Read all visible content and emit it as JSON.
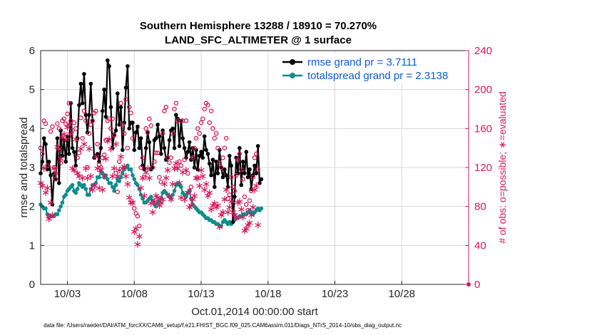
{
  "chart_data": {
    "type": "line",
    "title_line1": "Southern Hemisphere 13288 / 18910 = 70.270%",
    "title_line2": "LAND_SFC_ALTIMETER @ 1 surface",
    "xlabel": "Oct.01,2014 00:00:00 start",
    "ylabel_left": "rmse and totalspread",
    "ylabel_right": "# of obs: o=possible; ∗=evaluated",
    "x_tick_labels": [
      "10/03",
      "10/08",
      "10/13",
      "10/18",
      "10/23",
      "10/28"
    ],
    "x_tick_days": [
      3,
      8,
      13,
      18,
      23,
      28
    ],
    "xlim": [
      1,
      33
    ],
    "y_left_ticks": [
      "0",
      "1",
      "2",
      "3",
      "4",
      "5",
      "6"
    ],
    "y_right_ticks": [
      "0",
      "40",
      "80",
      "120",
      "160",
      "200",
      "240"
    ],
    "ylim_left": [
      0,
      6
    ],
    "ylim_right": [
      0,
      240
    ],
    "x_step_days": 0.125,
    "grid": true,
    "legend_location": "top-right",
    "footer": "data file: /Users/raeder/DAI/ATM_forcXX/CAM6_setup/f.e21.FHIST_BGC.f09_025.CAM6assim.011/Diags_NTrS_2014-10/obs_diag_output.nc",
    "colors": {
      "rmse": "#000000",
      "spread": "#0f8c8c",
      "obs": "#d6195c",
      "legend_text": "#0b5cd8"
    },
    "series": [
      {
        "name": "rmse grand pr = 3.7111",
        "axis": "left",
        "values": [
          2.85,
          3.15,
          3.75,
          3.6,
          2.95,
          3.15,
          2.8,
          2.05,
          2.85,
          2.7,
          3.75,
          2.6,
          3.95,
          3.3,
          3.7,
          3.15,
          3.8,
          3.35,
          4.65,
          3.5,
          3.4,
          3.05,
          3.75,
          4.6,
          5.15,
          4.65,
          5.4,
          4.35,
          3.9,
          4.35,
          5.15,
          4.2,
          3.25,
          3.3,
          3.35,
          3.15,
          3.5,
          4.45,
          5.0,
          4.3,
          5.75,
          5.6,
          4.55,
          3.5,
          3.85,
          3.95,
          4.9,
          4.1,
          4.55,
          3.45,
          4.15,
          5.05,
          5.6,
          4.0,
          4.15,
          4.15,
          3.45,
          3.9,
          4.05,
          3.5,
          3.75,
          3.05,
          2.95,
          3.5,
          3.9,
          3.65,
          2.95,
          3.0,
          3.7,
          3.75,
          4.1,
          3.8,
          3.35,
          3.95,
          3.5,
          3.2,
          3.25,
          3.7,
          3.95,
          4.0,
          3.5,
          4.35,
          4.25,
          3.55,
          4.2,
          3.75,
          3.5,
          3.25,
          3.4,
          3.65,
          3.2,
          3.5,
          3.0,
          3.45,
          2.95,
          3.3,
          3.4,
          3.25,
          3.8,
          3.45,
          3.35,
          3.1,
          2.8,
          3.2,
          2.5,
          3.15,
          2.85,
          3.45,
          3.0,
          2.75,
          2.95,
          2.8,
          2.5,
          3.3,
          3.05,
          1.6,
          2.25,
          3.25,
          2.85,
          3.5,
          2.55,
          3.15,
          2.85,
          3.4,
          2.75,
          2.95,
          2.45,
          2.8,
          3.05,
          2.85,
          3.55,
          2.6,
          2.7
        ]
      },
      {
        "name": "totalspread grand pr = 2.3138",
        "axis": "left",
        "values": [
          2.05,
          2.0,
          1.95,
          1.95,
          1.8,
          1.75,
          1.75,
          1.75,
          1.75,
          1.8,
          1.8,
          1.9,
          2.0,
          2.1,
          2.25,
          2.3,
          2.4,
          2.45,
          2.5,
          2.55,
          2.4,
          2.35,
          2.45,
          2.6,
          2.55,
          2.5,
          2.55,
          2.45,
          2.3,
          2.3,
          2.45,
          2.55,
          2.55,
          2.6,
          2.75,
          2.75,
          2.9,
          2.85,
          2.75,
          2.8,
          2.7,
          2.6,
          2.6,
          2.5,
          2.4,
          2.55,
          2.7,
          2.65,
          2.75,
          2.85,
          2.95,
          3.0,
          3.05,
          2.95,
          2.95,
          2.8,
          2.7,
          2.6,
          2.55,
          2.45,
          2.3,
          2.2,
          2.1,
          2.1,
          2.15,
          2.2,
          2.25,
          2.15,
          2.05,
          2.0,
          2.1,
          2.15,
          2.2,
          2.35,
          2.4,
          2.35,
          2.3,
          2.25,
          2.2,
          2.3,
          2.4,
          2.55,
          2.6,
          2.55,
          2.5,
          2.35,
          2.3,
          2.25,
          2.35,
          2.4,
          2.2,
          2.05,
          2.0,
          1.95,
          1.9,
          1.85,
          1.85,
          1.8,
          1.75,
          1.7,
          1.7,
          1.65,
          1.65,
          1.6,
          1.6,
          1.55,
          1.55,
          1.5,
          1.5,
          1.6,
          1.65,
          1.6,
          1.55,
          1.6,
          1.55,
          1.6,
          1.65,
          1.7,
          1.7,
          1.75,
          1.75,
          1.8,
          1.8,
          1.8,
          1.85,
          1.9,
          1.85,
          1.8,
          1.85,
          1.9,
          1.95,
          1.9,
          1.95
        ]
      },
      {
        "name": "possible obs",
        "axis": "right",
        "marker": "o",
        "values": [
          140,
          134,
          168,
          165,
          122,
          70,
          157,
          162,
          120,
          108,
          165,
          160,
          125,
          168,
          170,
          165,
          175,
          186,
          168,
          158,
          166,
          160,
          130,
          135,
          171,
          150,
          178,
          168,
          120,
          155,
          164,
          168,
          176,
          178,
          144,
          123,
          120,
          130,
          133,
          148,
          168,
          170,
          160,
          170,
          153,
          114,
          95,
          126,
          186,
          164,
          155,
          190,
          140,
          182,
          176,
          150,
          78,
          73,
          70,
          60,
          120,
          130,
          110,
          160,
          156,
          170,
          163,
          120,
          126,
          135,
          135,
          110,
          105,
          155,
          178,
          182,
          130,
          125,
          130,
          155,
          180,
          186,
          168,
          126,
          122,
          168,
          128,
          168,
          114,
          96,
          100,
          130,
          140,
          150,
          160,
          155,
          166,
          170,
          180,
          186,
          184,
          166,
          178,
          160,
          150,
          155,
          140,
          125,
          120,
          130,
          140,
          150,
          88,
          92,
          110,
          100,
          96,
          112,
          128,
          134,
          118,
          108,
          90,
          82,
          76,
          86,
          96,
          110,
          130,
          134,
          118
        ]
      },
      {
        "name": "evaluated obs",
        "axis": "right",
        "marker": "*",
        "values": [
          105,
          102,
          120,
          95,
          100,
          68,
          85,
          72,
          120,
          115,
          142,
          140,
          130,
          152,
          155,
          150,
          162,
          165,
          155,
          120,
          118,
          150,
          115,
          112,
          140,
          110,
          145,
          120,
          110,
          140,
          112,
          98,
          102,
          132,
          120,
          100,
          118,
          98,
          112,
          130,
          148,
          150,
          140,
          112,
          120,
          145,
          112,
          118,
          132,
          120,
          122,
          112,
          104,
          90,
          85,
          85,
          55,
          58,
          42,
          50,
          100,
          110,
          92,
          116,
          120,
          110,
          84,
          75,
          86,
          92,
          90,
          82,
          85,
          88,
          104,
          110,
          118,
          92,
          88,
          104,
          120,
          125,
          120,
          105,
          90,
          116,
          88,
          118,
          95,
          80,
          82,
          88,
          92,
          110,
          110,
          102,
          118,
          112,
          98,
          104,
          92,
          95,
          78,
          82,
          84,
          80,
          82,
          60,
          72,
          75,
          88,
          98,
          75,
          80,
          86,
          75,
          72,
          70,
          85,
          86,
          78,
          70,
          56,
          58,
          62,
          64,
          72,
          80,
          98,
          102,
          62
        ]
      }
    ]
  },
  "legend": {
    "rmse_label": "rmse grand pr = 3.7111",
    "spread_label": "totalspread grand pr = 2.3138"
  }
}
